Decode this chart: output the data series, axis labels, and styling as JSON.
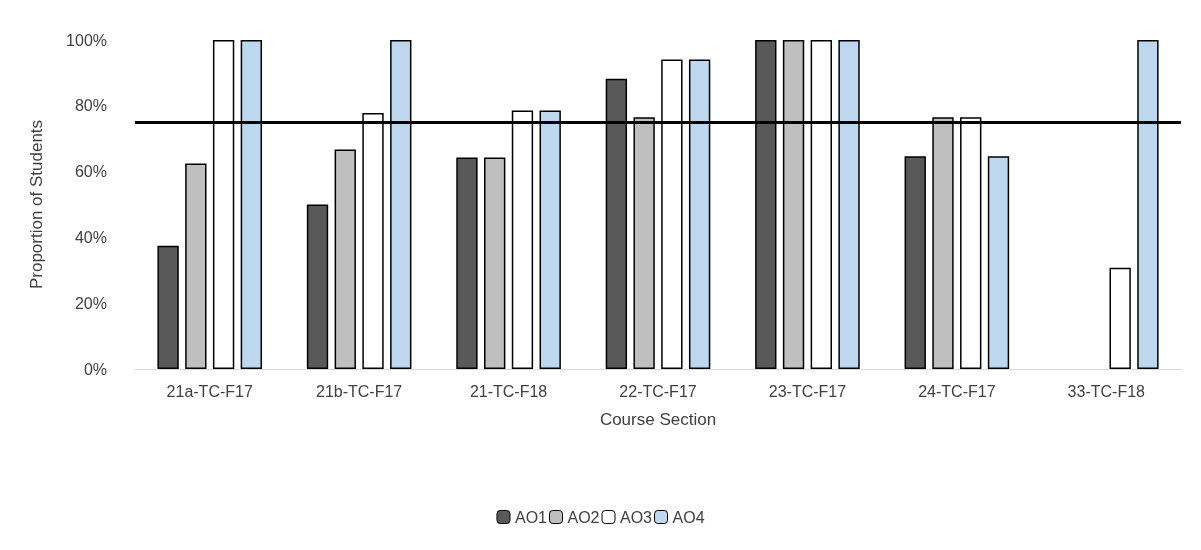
{
  "chart_data": {
    "type": "bar",
    "xlabel": "Course Section",
    "ylabel": "Proportion of Students",
    "categories": [
      "21a-TC-F17",
      "21b-TC-F17",
      "21-TC-F18",
      "22-TC-F17",
      "23-TC-F17",
      "24-TC-F17",
      "33-TC-F18"
    ],
    "series": [
      {
        "name": "AO1",
        "color": "#595959",
        "values": [
          37.5,
          50,
          64.3,
          88.2,
          100,
          64.7,
          null
        ]
      },
      {
        "name": "AO2",
        "color": "#bfbfbf",
        "values": [
          62.5,
          66.7,
          64.3,
          76.5,
          100,
          76.5,
          null
        ]
      },
      {
        "name": "AO3",
        "color": "#ffffff",
        "values": [
          100,
          77.8,
          78.6,
          94.1,
          100,
          76.5,
          30.8
        ]
      },
      {
        "name": "AO4",
        "color": "#bdd7ee",
        "values": [
          100,
          100,
          78.6,
          94.1,
          100,
          64.7,
          100
        ]
      }
    ],
    "ylim": [
      0,
      100
    ],
    "yticks": [
      {
        "value": 0,
        "label": "0%"
      },
      {
        "value": 20,
        "label": "20%"
      },
      {
        "value": 40,
        "label": "40%"
      },
      {
        "value": 60,
        "label": "60%"
      },
      {
        "value": 80,
        "label": "80%"
      },
      {
        "value": 100,
        "label": "100%"
      }
    ],
    "ref_lines": [
      {
        "axis": "y",
        "value": 75,
        "color": "#000000"
      }
    ],
    "grid": false,
    "legend": "bottom"
  }
}
